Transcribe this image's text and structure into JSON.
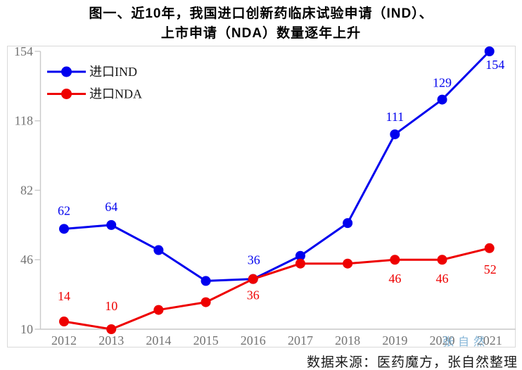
{
  "title": {
    "line1": "图一、近10年，我国进口创新药临床试验申请（IND）、",
    "line2": "上市申请（NDA）数量逐年上升"
  },
  "source": "数据来源：医药魔方，张自然整理",
  "watermark": "张自然",
  "colors": {
    "ind": "#0000ee",
    "nda": "#ee0000",
    "axis": "#c9c9c9",
    "tick_text": "#737373",
    "outer_border": "#d9d9d9",
    "watermark": "#6fa8d0"
  },
  "chart_data": {
    "type": "line",
    "title": "图一、近10年，我国进口创新药临床试验申请（IND）、上市申请（NDA）数量逐年上升",
    "categories": [
      "2012",
      "2013",
      "2014",
      "2015",
      "2016",
      "2017",
      "2018",
      "2019",
      "2020",
      "2021"
    ],
    "series": [
      {
        "name": "进口IND",
        "color": "#0000ee",
        "values": [
          62,
          64,
          51,
          35,
          36,
          48,
          65,
          111,
          129,
          154
        ],
        "labels": [
          {
            "i": 0,
            "t": "62",
            "dx": 0,
            "dy": -20
          },
          {
            "i": 1,
            "t": "64",
            "dx": 0,
            "dy": -20
          },
          {
            "i": 4,
            "t": "36",
            "dx": 1,
            "dy": -21
          },
          {
            "i": 7,
            "t": "111",
            "dx": 0,
            "dy": -19
          },
          {
            "i": 8,
            "t": "129",
            "dx": 0,
            "dy": -18
          },
          {
            "i": 9,
            "t": "154",
            "dx": 8,
            "dy": 25
          }
        ]
      },
      {
        "name": "进口NDA",
        "color": "#ee0000",
        "values": [
          14,
          10,
          20,
          24,
          36,
          44,
          44,
          46,
          46,
          52
        ],
        "labels": [
          {
            "i": 0,
            "t": "14",
            "dx": 0,
            "dy": -30
          },
          {
            "i": 1,
            "t": "10",
            "dx": 0,
            "dy": -27
          },
          {
            "i": 4,
            "t": "36",
            "dx": 0,
            "dy": 29
          },
          {
            "i": 7,
            "t": "46",
            "dx": 0,
            "dy": 33
          },
          {
            "i": 8,
            "t": "46",
            "dx": 0,
            "dy": 33
          },
          {
            "i": 9,
            "t": "52",
            "dx": 1,
            "dy": 36
          }
        ]
      }
    ],
    "y_ticks": [
      10,
      46,
      82,
      118,
      154
    ],
    "ylim": [
      10,
      154
    ],
    "xlabel": "",
    "ylabel": "",
    "grid": false,
    "legend_position": "top-left"
  }
}
